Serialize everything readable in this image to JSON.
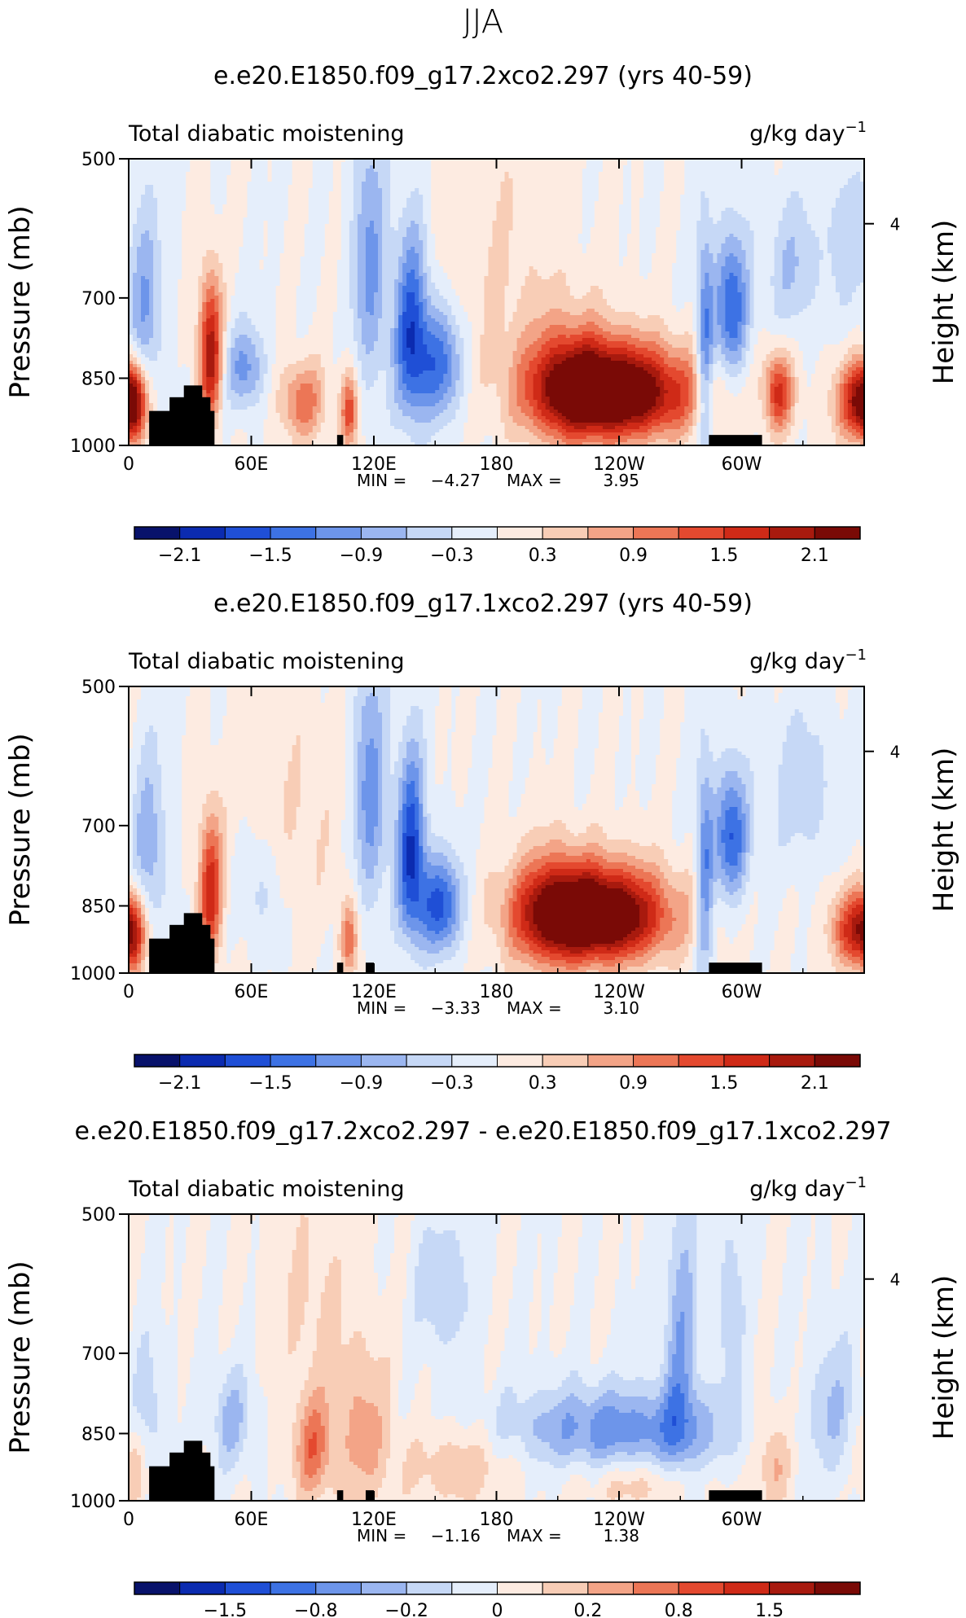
{
  "page": {
    "title": "JJA"
  },
  "colors": {
    "palette": [
      "#08126b",
      "#0b2bb0",
      "#1f4fd6",
      "#3d72e4",
      "#6d95ea",
      "#9bb6f0",
      "#c6d8f6",
      "#e5eefb",
      "#fdebe1",
      "#f8cdb6",
      "#f3a487",
      "#ec7656",
      "#e4492f",
      "#cf2a17",
      "#a81a0e",
      "#7a0a06"
    ],
    "topography": "#000000"
  },
  "chart_data": [
    {
      "type": "heatmap",
      "title": "e.e20.E1850.f09_g17.2xco2.297 (yrs 40-59)",
      "left_label": "Total diabatic moistening",
      "units_label": "g/kg day",
      "units_exponent": "−1",
      "ylabel": "Pressure (mb)",
      "y2label": "Height (km)",
      "y_ticks": [
        "500",
        "700",
        "850",
        "1000"
      ],
      "y2_ticks": [
        "4"
      ],
      "x_ticks": [
        "0",
        "60E",
        "120E",
        "180",
        "120W",
        "60W"
      ],
      "min_label": "MIN =",
      "min": "−4.27",
      "max_label": "MAX =",
      "max": "3.95",
      "colorbar_labels": [
        "−2.1",
        "−1.5",
        "−0.9",
        "−0.3",
        "0.3",
        "0.9",
        "1.5",
        "2.1"
      ],
      "colorbar_range": [
        -2.4,
        2.4
      ],
      "features": [
        {
          "lon": 138,
          "p": 760,
          "value": -1.6,
          "sl": 6,
          "sp": 130
        },
        {
          "lon": 152,
          "p": 820,
          "value": -1.4,
          "sl": 8,
          "sp": 80
        },
        {
          "lon": 118,
          "p": 650,
          "value": -1.0,
          "sl": 6,
          "sp": 150
        },
        {
          "lon": 8,
          "p": 720,
          "value": -0.9,
          "sl": 6,
          "sp": 120
        },
        {
          "lon": 57,
          "p": 830,
          "value": -1.0,
          "sl": 7,
          "sp": 60
        },
        {
          "lon": 295,
          "p": 720,
          "value": -1.5,
          "sl": 6,
          "sp": 90
        },
        {
          "lon": 282,
          "p": 800,
          "value": -1.3,
          "sl": 3,
          "sp": 150
        },
        {
          "lon": 325,
          "p": 650,
          "value": -0.6,
          "sl": 10,
          "sp": 80
        },
        {
          "lon": 350,
          "p": 600,
          "value": -0.5,
          "sl": 6,
          "sp": 80
        },
        {
          "lon": 240,
          "p": 880,
          "value": 2.8,
          "sl": 26,
          "sp": 70
        },
        {
          "lon": 215,
          "p": 860,
          "value": 1.2,
          "sl": 16,
          "sp": 90
        },
        {
          "lon": 40,
          "p": 800,
          "value": 2.0,
          "sl": 4,
          "sp": 100
        },
        {
          "lon": 2,
          "p": 900,
          "value": 1.5,
          "sl": 4,
          "sp": 60
        },
        {
          "lon": 357,
          "p": 900,
          "value": 1.8,
          "sl": 8,
          "sp": 60
        },
        {
          "lon": 318,
          "p": 880,
          "value": 1.6,
          "sl": 5,
          "sp": 60
        },
        {
          "lon": 85,
          "p": 900,
          "value": 1.1,
          "sl": 8,
          "sp": 60
        },
        {
          "lon": 108,
          "p": 920,
          "value": 1.4,
          "sl": 3,
          "sp": 60
        },
        {
          "lon": 180,
          "p": 650,
          "value": 0.3,
          "sl": 25,
          "sp": 150
        }
      ],
      "topography": [
        {
          "lon0": 10,
          "lon1": 42,
          "ptop": 920
        },
        {
          "lon0": 20,
          "lon1": 40,
          "ptop": 890
        },
        {
          "lon0": 27,
          "lon1": 36,
          "ptop": 865
        },
        {
          "lon0": 284,
          "lon1": 310,
          "ptop": 975
        },
        {
          "lon0": 102,
          "lon1": 105,
          "ptop": 975
        }
      ]
    },
    {
      "type": "heatmap",
      "title": "e.e20.E1850.f09_g17.1xco2.297 (yrs 40-59)",
      "left_label": "Total diabatic moistening",
      "units_label": "g/kg day",
      "units_exponent": "−1",
      "ylabel": "Pressure (mb)",
      "y2label": "Height (km)",
      "y_ticks": [
        "500",
        "700",
        "850",
        "1000"
      ],
      "y2_ticks": [
        "4"
      ],
      "x_ticks": [
        "0",
        "60E",
        "120E",
        "180",
        "120W",
        "60W"
      ],
      "min_label": "MIN =",
      "min": "−3.33",
      "max_label": "MAX =",
      "max": "3.10",
      "colorbar_labels": [
        "−2.1",
        "−1.5",
        "−0.9",
        "−0.3",
        "0.3",
        "0.9",
        "1.5",
        "2.1"
      ],
      "colorbar_range": [
        -2.4,
        2.4
      ],
      "features": [
        {
          "lon": 138,
          "p": 740,
          "value": -1.7,
          "sl": 5,
          "sp": 120
        },
        {
          "lon": 152,
          "p": 850,
          "value": -1.6,
          "sl": 8,
          "sp": 70
        },
        {
          "lon": 118,
          "p": 650,
          "value": -1.1,
          "sl": 6,
          "sp": 140
        },
        {
          "lon": 10,
          "p": 740,
          "value": -0.8,
          "sl": 6,
          "sp": 120
        },
        {
          "lon": 65,
          "p": 820,
          "value": -0.5,
          "sl": 8,
          "sp": 80
        },
        {
          "lon": 295,
          "p": 720,
          "value": -1.5,
          "sl": 6,
          "sp": 80
        },
        {
          "lon": 282,
          "p": 800,
          "value": -1.2,
          "sl": 3,
          "sp": 150
        },
        {
          "lon": 330,
          "p": 640,
          "value": -0.5,
          "sl": 12,
          "sp": 90
        },
        {
          "lon": 230,
          "p": 870,
          "value": 3.0,
          "sl": 24,
          "sp": 70
        },
        {
          "lon": 205,
          "p": 860,
          "value": 1.0,
          "sl": 14,
          "sp": 90
        },
        {
          "lon": 40,
          "p": 820,
          "value": 1.7,
          "sl": 4,
          "sp": 100
        },
        {
          "lon": 2,
          "p": 910,
          "value": 1.3,
          "sl": 4,
          "sp": 60
        },
        {
          "lon": 355,
          "p": 900,
          "value": 1.6,
          "sl": 8,
          "sp": 60
        },
        {
          "lon": 108,
          "p": 920,
          "value": 1.1,
          "sl": 3,
          "sp": 60
        },
        {
          "lon": 80,
          "p": 700,
          "value": 0.3,
          "sl": 20,
          "sp": 150
        }
      ],
      "topography": [
        {
          "lon0": 10,
          "lon1": 42,
          "ptop": 920
        },
        {
          "lon0": 20,
          "lon1": 40,
          "ptop": 890
        },
        {
          "lon0": 27,
          "lon1": 36,
          "ptop": 865
        },
        {
          "lon0": 284,
          "lon1": 310,
          "ptop": 975
        },
        {
          "lon0": 102,
          "lon1": 105,
          "ptop": 975
        },
        {
          "lon0": 116,
          "lon1": 120,
          "ptop": 975
        }
      ]
    },
    {
      "type": "heatmap",
      "title": "e.e20.E1850.f09_g17.2xco2.297 - e.e20.E1850.f09_g17.1xco2.297",
      "left_label": "Total diabatic moistening",
      "units_label": "g/kg day",
      "units_exponent": "−1",
      "ylabel": "Pressure (mb)",
      "y2label": "Height (km)",
      "y_ticks": [
        "500",
        "700",
        "850",
        "1000"
      ],
      "y2_ticks": [
        "4"
      ],
      "x_ticks": [
        "0",
        "60E",
        "120E",
        "180",
        "120W",
        "60W"
      ],
      "min_label": "MIN =",
      "min": "−1.16",
      "max_label": "MAX =",
      "max": "1.38",
      "colorbar_labels": [
        "−1.5",
        "−0.8",
        "−0.2",
        "0",
        "0.2",
        "0.8",
        "1.5"
      ],
      "colorbar_range": [
        -2.0,
        2.0
      ],
      "features": [
        {
          "lon": 240,
          "p": 840,
          "value": -0.9,
          "sl": 40,
          "sp": 60
        },
        {
          "lon": 270,
          "p": 700,
          "value": -0.7,
          "sl": 6,
          "sp": 180
        },
        {
          "lon": 155,
          "p": 600,
          "value": -0.5,
          "sl": 10,
          "sp": 70
        },
        {
          "lon": 50,
          "p": 820,
          "value": -0.6,
          "sl": 7,
          "sp": 70
        },
        {
          "lon": 10,
          "p": 800,
          "value": -0.4,
          "sl": 5,
          "sp": 100
        },
        {
          "lon": 345,
          "p": 800,
          "value": -0.5,
          "sl": 8,
          "sp": 100
        },
        {
          "lon": 295,
          "p": 620,
          "value": -0.4,
          "sl": 5,
          "sp": 100
        },
        {
          "lon": 90,
          "p": 880,
          "value": 0.9,
          "sl": 7,
          "sp": 80
        },
        {
          "lon": 115,
          "p": 850,
          "value": 0.6,
          "sl": 10,
          "sp": 120
        },
        {
          "lon": 162,
          "p": 920,
          "value": 0.5,
          "sl": 18,
          "sp": 60
        },
        {
          "lon": 250,
          "p": 960,
          "value": 0.4,
          "sl": 20,
          "sp": 40
        },
        {
          "lon": 315,
          "p": 900,
          "value": 0.6,
          "sl": 6,
          "sp": 80
        },
        {
          "lon": 2,
          "p": 920,
          "value": 0.5,
          "sl": 4,
          "sp": 60
        },
        {
          "lon": 90,
          "p": 620,
          "value": 0.3,
          "sl": 14,
          "sp": 100
        }
      ],
      "topography": [
        {
          "lon0": 10,
          "lon1": 42,
          "ptop": 920
        },
        {
          "lon0": 20,
          "lon1": 40,
          "ptop": 890
        },
        {
          "lon0": 27,
          "lon1": 36,
          "ptop": 865
        },
        {
          "lon0": 284,
          "lon1": 310,
          "ptop": 975
        },
        {
          "lon0": 102,
          "lon1": 105,
          "ptop": 975
        },
        {
          "lon0": 116,
          "lon1": 120,
          "ptop": 975
        }
      ]
    }
  ]
}
